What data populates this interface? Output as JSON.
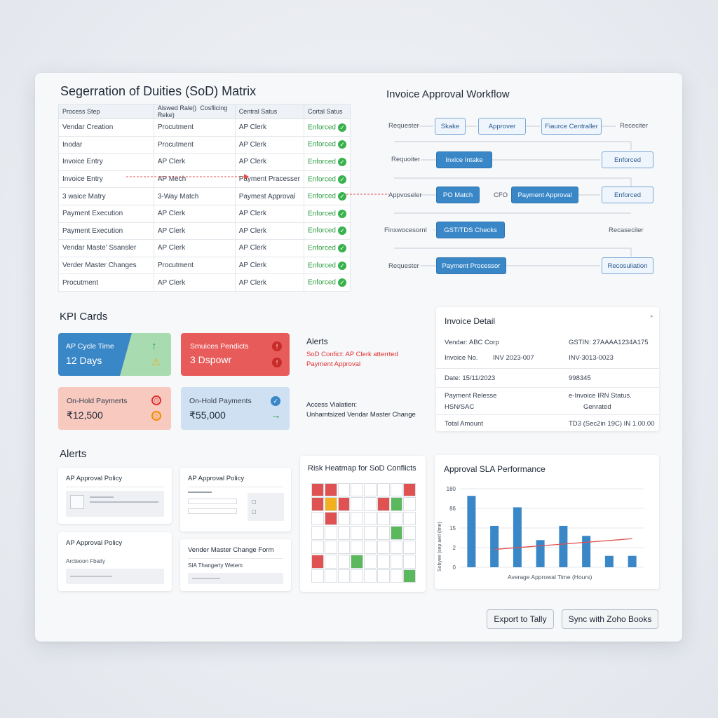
{
  "sod": {
    "title": "Segerration of Duities (SoD) Matrix",
    "headers": [
      "Process Step",
      "Alswed Rale|)",
      "Cosflicing Reke)",
      "Central Satus",
      "Cortal Satus"
    ],
    "rows": [
      {
        "step": "Vendar Creation",
        "role": "Procutment",
        "conflict": "AP Clerk",
        "status": "Enforced"
      },
      {
        "step": "Inodar",
        "role": "Procutment",
        "conflict": "AP Clerk",
        "status": "Enforced"
      },
      {
        "step": "Invoice Entry",
        "role": "AP Clerk",
        "conflict": "AP Clerk",
        "status": "Enforced"
      },
      {
        "step": "Invoice Entry",
        "role": "AP Mech",
        "conflict": "Payment Pracesser",
        "status": "Enforced"
      },
      {
        "step": "3 waice Matry",
        "role": "3-Way Match",
        "conflict": "Paymest Approval",
        "status": "Enforced"
      },
      {
        "step": "Payment Execution",
        "role": "AP Clerk",
        "conflict": "AP Clerk",
        "status": "Enforced"
      },
      {
        "step": "Payment Execution",
        "role": "AP Clerk",
        "conflict": "AP Clerk",
        "status": "Enforced"
      },
      {
        "step": "Vendar Maste' Ssansler",
        "role": "AP Clerk",
        "conflict": "AP Clerk",
        "status": "Enforced"
      },
      {
        "step": "Verder Master Changes",
        "role": "Procutment",
        "conflict": "AP Clerk",
        "status": "Enforced"
      },
      {
        "step": "Procutment",
        "role": "AP Clerk",
        "conflict": "AP Clerk",
        "status": "Enforced"
      }
    ]
  },
  "workflow": {
    "title": "Invoice Approval Workflow",
    "labels": [
      "Requester",
      "Receciter",
      "Requoiter",
      "Appvoseler",
      "CFO",
      "Finxwocesornl",
      "Recaseciler",
      "Requester"
    ],
    "boxes": [
      "Skake",
      "Approver",
      "Fiaurce Centraller",
      "Inxice Intake",
      "Enforced",
      "PO Match",
      "Payment Approval",
      "Enforced",
      "GST/TDS Checks",
      "Payment Processor",
      "Recosuliation"
    ]
  },
  "kpi": {
    "title": "KPI Cards",
    "cards": [
      {
        "title": "AP Cycle Time",
        "value": "12 Days"
      },
      {
        "title": "Smuices Pendicts",
        "value": "3 Dspowr"
      },
      {
        "title": "On-Hold Paymerts",
        "value": "₹12,500"
      },
      {
        "title": "On-Hold Payments",
        "value": "₹55,000"
      }
    ]
  },
  "side_alerts": {
    "title": "Alerts",
    "line1": "SoD Confict: AP Clerk atterrted",
    "line2": "Payment Approval",
    "access_title": "Access Vialatien:",
    "access_text": "Unhamtsized Vendar Master Change"
  },
  "invoice": {
    "title": "Invoice Detail",
    "vendor": "Vendar: ABC Corp",
    "gstin": "GSTIN: 27AAAA1234A175",
    "inv_label": "Invoice No.",
    "inv_value": "INV 2023-007",
    "inv_value2": "INV-3013-0023",
    "date": "Date: 15/11/2023",
    "date_value": "998345",
    "pay_release": "Payment Relesse",
    "hsn": "HSN/SAC",
    "irn": "e-Invoice IRN Status.",
    "irn_value": "Genrated",
    "total_label": "Total Amount",
    "total_value": "TD3 (Sec2in 19C) IN 1.00.00"
  },
  "alerts": {
    "title": "Alerts",
    "cards": [
      {
        "title": "AP Approval Policy"
      },
      {
        "title": "AP Approval Policy"
      },
      {
        "title": "AP Approval Policy",
        "sub": "Arcteoon Fbaity"
      },
      {
        "title": "Vender Master Change Form",
        "sub": "SIA Thangerty Wetem"
      }
    ]
  },
  "heatmap": {
    "title": "Risk Heatmap for SoD Conflicts",
    "colors": {
      "red": "#e05252",
      "amber": "#f2b01e",
      "green": "#5cb85c"
    },
    "cells": [
      [
        "red",
        "red",
        "",
        "",
        "",
        "",
        "",
        "red"
      ],
      [
        "red",
        "amber",
        "red",
        "",
        "",
        "red",
        "green",
        ""
      ],
      [
        "",
        "red",
        "",
        "",
        "",
        "",
        "",
        ""
      ],
      [
        "",
        "",
        "",
        "",
        "",
        "",
        "green",
        ""
      ],
      [
        "",
        "",
        "",
        "",
        "",
        "",
        "",
        ""
      ],
      [
        "red",
        "",
        "",
        "green",
        "",
        "",
        "",
        ""
      ],
      [
        "",
        "",
        "",
        "",
        "",
        "",
        "",
        "green"
      ]
    ]
  },
  "chart_data": {
    "type": "bar",
    "title": "Approval SLA Performance",
    "xlabel": "Average Approwal Time (Hours)",
    "ylabel": "Sobyee (sep aerl (lme)",
    "yticks": [
      "180",
      "86",
      "15",
      "2",
      "0"
    ],
    "values": [
      100,
      58,
      84,
      38,
      58,
      44,
      16,
      16
    ],
    "trend": [
      25,
      40
    ],
    "ylim": [
      0,
      110
    ],
    "bar_color": "#3a87c8",
    "trend_color": "#e05252"
  },
  "buttons": {
    "export": "Export to Tally",
    "sync": "Sync with Zoho Books"
  }
}
